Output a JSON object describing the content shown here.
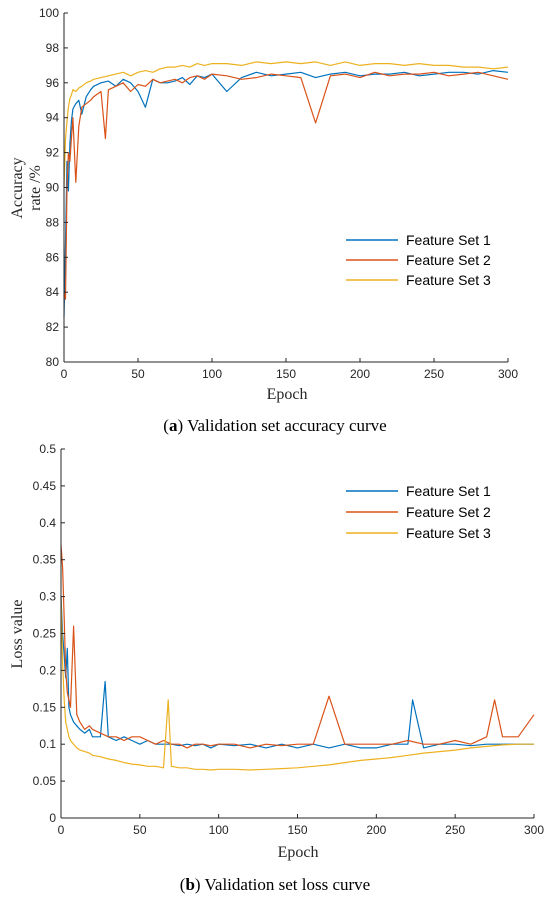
{
  "chart_data": [
    {
      "type": "line",
      "caption_letter": "a",
      "caption_rest": "Validation set accuracy curve",
      "xlabel": "Epoch",
      "ylabel_lines": [
        "Accuracy",
        "rate /%"
      ],
      "xlim": [
        0,
        300
      ],
      "ylim": [
        80,
        100
      ],
      "xticks": [
        0,
        50,
        100,
        150,
        200,
        250,
        300
      ],
      "yticks": [
        80,
        82,
        84,
        86,
        88,
        90,
        92,
        94,
        96,
        98,
        100
      ],
      "grid": false,
      "legend_position": "center-right",
      "series": [
        {
          "name": "Feature Set 1",
          "color": "#0072BD",
          "x": [
            0,
            1,
            2,
            3,
            4,
            5,
            6,
            8,
            10,
            12,
            15,
            18,
            20,
            25,
            30,
            35,
            40,
            45,
            50,
            55,
            60,
            65,
            70,
            75,
            80,
            85,
            90,
            95,
            100,
            110,
            120,
            130,
            140,
            150,
            160,
            170,
            180,
            190,
            200,
            210,
            220,
            230,
            240,
            250,
            260,
            270,
            280,
            290,
            300
          ],
          "values": [
            82.6,
            86.8,
            91.5,
            89.8,
            92.5,
            93.8,
            94.5,
            94.8,
            95.0,
            94.2,
            95.2,
            95.6,
            95.8,
            96.0,
            96.1,
            95.8,
            96.2,
            96.0,
            95.5,
            94.6,
            96.2,
            96.0,
            96.0,
            96.1,
            96.3,
            95.9,
            96.4,
            96.3,
            96.5,
            95.5,
            96.3,
            96.6,
            96.4,
            96.5,
            96.6,
            96.3,
            96.5,
            96.6,
            96.4,
            96.5,
            96.5,
            96.6,
            96.4,
            96.5,
            96.6,
            96.6,
            96.5,
            96.7,
            96.6
          ]
        },
        {
          "name": "Feature Set 2",
          "color": "#D95319",
          "x": [
            0,
            1,
            2,
            3,
            4,
            5,
            6,
            8,
            10,
            12,
            15,
            18,
            20,
            25,
            28,
            30,
            35,
            40,
            45,
            50,
            55,
            60,
            65,
            70,
            75,
            80,
            85,
            90,
            95,
            100,
            110,
            120,
            130,
            140,
            150,
            160,
            170,
            180,
            190,
            200,
            210,
            220,
            230,
            240,
            250,
            260,
            270,
            280,
            290,
            300
          ],
          "values": [
            84.0,
            83.6,
            90.0,
            92.0,
            91.5,
            92.8,
            94.0,
            90.3,
            93.5,
            94.6,
            94.8,
            95.0,
            95.2,
            95.5,
            92.8,
            95.6,
            95.8,
            96.0,
            95.5,
            95.9,
            95.8,
            96.2,
            96.0,
            96.1,
            96.2,
            96.0,
            96.3,
            96.4,
            96.2,
            96.5,
            96.4,
            96.2,
            96.3,
            96.5,
            96.4,
            96.3,
            93.7,
            96.4,
            96.5,
            96.3,
            96.6,
            96.4,
            96.5,
            96.5,
            96.6,
            96.4,
            96.5,
            96.6,
            96.4,
            96.2
          ]
        },
        {
          "name": "Feature Set 3",
          "color": "#EDB120",
          "x": [
            0,
            1,
            2,
            3,
            4,
            5,
            6,
            8,
            10,
            12,
            15,
            18,
            20,
            25,
            30,
            35,
            40,
            45,
            50,
            55,
            60,
            65,
            70,
            75,
            80,
            85,
            90,
            95,
            100,
            110,
            120,
            130,
            140,
            150,
            160,
            170,
            180,
            190,
            200,
            210,
            220,
            230,
            240,
            250,
            260,
            270,
            280,
            290,
            300
          ],
          "values": [
            90.0,
            92.8,
            93.8,
            94.6,
            95.1,
            95.3,
            95.6,
            95.5,
            95.7,
            95.8,
            96.0,
            96.1,
            96.2,
            96.3,
            96.4,
            96.5,
            96.6,
            96.4,
            96.6,
            96.7,
            96.6,
            96.8,
            96.9,
            96.9,
            97.0,
            96.9,
            97.1,
            97.0,
            97.1,
            97.1,
            97.0,
            97.2,
            97.1,
            97.2,
            97.1,
            97.2,
            97.0,
            97.2,
            97.0,
            97.1,
            97.1,
            97.0,
            97.1,
            97.0,
            97.0,
            96.9,
            96.9,
            96.8,
            96.9
          ]
        }
      ]
    },
    {
      "type": "line",
      "caption_letter": "b",
      "caption_rest": "Validation set loss curve",
      "xlabel": "Epoch",
      "ylabel_lines": [
        "Loss value"
      ],
      "xlim": [
        0,
        300
      ],
      "ylim": [
        0,
        0.5
      ],
      "xticks": [
        0,
        50,
        100,
        150,
        200,
        250,
        300
      ],
      "yticks": [
        0,
        0.05,
        0.1,
        0.15,
        0.2,
        0.25,
        0.3,
        0.35,
        0.4,
        0.45,
        0.5
      ],
      "grid": false,
      "legend_position": "top-right",
      "series": [
        {
          "name": "Feature Set 1",
          "color": "#0072BD",
          "x": [
            0,
            1,
            2,
            3,
            4,
            5,
            6,
            8,
            10,
            12,
            15,
            18,
            20,
            25,
            28,
            30,
            35,
            40,
            45,
            50,
            55,
            60,
            65,
            70,
            75,
            80,
            85,
            90,
            95,
            100,
            110,
            120,
            130,
            140,
            150,
            160,
            170,
            180,
            190,
            200,
            210,
            220,
            223,
            230,
            240,
            250,
            260,
            270,
            280,
            290,
            300
          ],
          "values": [
            0.3,
            0.25,
            0.22,
            0.19,
            0.23,
            0.15,
            0.14,
            0.13,
            0.125,
            0.12,
            0.115,
            0.12,
            0.11,
            0.11,
            0.185,
            0.11,
            0.105,
            0.11,
            0.105,
            0.1,
            0.105,
            0.1,
            0.1,
            0.1,
            0.098,
            0.1,
            0.098,
            0.1,
            0.095,
            0.1,
            0.098,
            0.1,
            0.095,
            0.1,
            0.095,
            0.1,
            0.095,
            0.1,
            0.095,
            0.095,
            0.1,
            0.1,
            0.16,
            0.095,
            0.1,
            0.1,
            0.098,
            0.1,
            0.1,
            0.1,
            0.1
          ]
        },
        {
          "name": "Feature Set 2",
          "color": "#D95319",
          "x": [
            0,
            1,
            2,
            3,
            4,
            5,
            6,
            8,
            10,
            12,
            15,
            18,
            20,
            25,
            30,
            35,
            40,
            45,
            50,
            55,
            60,
            65,
            70,
            75,
            80,
            85,
            90,
            95,
            100,
            110,
            120,
            130,
            140,
            150,
            160,
            170,
            180,
            190,
            200,
            210,
            220,
            230,
            240,
            250,
            260,
            270,
            275,
            280,
            290,
            300
          ],
          "values": [
            0.37,
            0.34,
            0.27,
            0.2,
            0.17,
            0.16,
            0.15,
            0.26,
            0.14,
            0.13,
            0.12,
            0.125,
            0.12,
            0.115,
            0.11,
            0.11,
            0.105,
            0.11,
            0.11,
            0.105,
            0.1,
            0.105,
            0.1,
            0.1,
            0.095,
            0.1,
            0.1,
            0.098,
            0.1,
            0.1,
            0.095,
            0.1,
            0.098,
            0.1,
            0.1,
            0.165,
            0.1,
            0.1,
            0.1,
            0.1,
            0.105,
            0.1,
            0.1,
            0.105,
            0.1,
            0.11,
            0.16,
            0.11,
            0.11,
            0.14
          ]
        },
        {
          "name": "Feature Set 3",
          "color": "#EDB120",
          "x": [
            0,
            1,
            2,
            3,
            4,
            5,
            6,
            8,
            10,
            12,
            15,
            18,
            20,
            25,
            30,
            35,
            40,
            45,
            50,
            55,
            60,
            65,
            68,
            70,
            75,
            80,
            85,
            90,
            95,
            100,
            110,
            120,
            130,
            140,
            150,
            160,
            170,
            180,
            190,
            200,
            210,
            220,
            230,
            240,
            250,
            260,
            270,
            280,
            290,
            300
          ],
          "values": [
            0.3,
            0.21,
            0.16,
            0.13,
            0.12,
            0.11,
            0.105,
            0.1,
            0.095,
            0.092,
            0.09,
            0.088,
            0.085,
            0.083,
            0.08,
            0.078,
            0.075,
            0.073,
            0.072,
            0.07,
            0.07,
            0.068,
            0.16,
            0.07,
            0.068,
            0.068,
            0.066,
            0.066,
            0.065,
            0.066,
            0.066,
            0.065,
            0.066,
            0.067,
            0.068,
            0.07,
            0.072,
            0.075,
            0.078,
            0.08,
            0.082,
            0.085,
            0.088,
            0.09,
            0.092,
            0.095,
            0.097,
            0.099,
            0.1,
            0.1
          ]
        }
      ]
    }
  ]
}
